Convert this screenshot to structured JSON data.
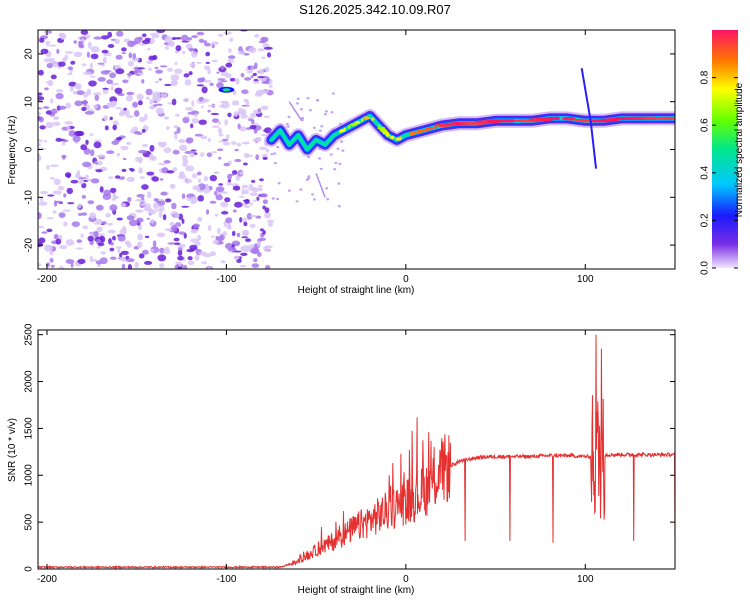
{
  "title": "S126.2025.342.10.09.R07",
  "colors": {
    "snr_line": "#e53030",
    "axis": "#000000",
    "scatter": "#7a2fe6"
  },
  "chart_data": [
    {
      "type": "heatmap",
      "title": "S126.2025.342.10.09.R07",
      "xlabel": "Height of straight line (km)",
      "ylabel": "Frequency (Hz)",
      "xlim": [
        -205,
        150
      ],
      "ylim": [
        -25,
        25
      ],
      "xticks": [
        -200,
        -100,
        0,
        100
      ],
      "yticks": [
        -20,
        -10,
        0,
        10,
        20
      ],
      "colorbar": {
        "label": "Normalized spectral amplitude",
        "range": [
          0.0,
          1.0
        ],
        "ticks": [
          0.0,
          0.2,
          0.4,
          0.6,
          0.8
        ],
        "tick_labels": [
          "0.0",
          "0.2",
          "0.4",
          "0.6",
          "0.8"
        ]
      },
      "noise_region_km": [
        -205,
        -75
      ],
      "ridge": {
        "x": [
          -75,
          -70,
          -65,
          -60,
          -55,
          -50,
          -45,
          -40,
          -35,
          -30,
          -25,
          -20,
          -15,
          -10,
          -5,
          0,
          10,
          20,
          30,
          40,
          50,
          60,
          70,
          80,
          90,
          100,
          105,
          110,
          120,
          130,
          140,
          150
        ],
        "y": [
          2,
          4,
          1,
          3,
          0,
          2,
          1,
          3,
          4,
          5,
          6,
          7,
          5,
          3,
          2,
          3,
          4,
          5,
          5.5,
          5.5,
          6,
          6,
          6,
          6.5,
          6.5,
          6,
          6,
          6,
          6.5,
          6.5,
          6.5,
          6.5
        ],
        "amplitude": [
          0.3,
          0.5,
          0.4,
          0.6,
          0.4,
          0.5,
          0.4,
          0.6,
          0.7,
          0.6,
          0.7,
          0.8,
          0.6,
          0.7,
          0.7,
          0.8,
          0.85,
          0.9,
          0.95,
          0.9,
          0.95,
          0.95,
          0.9,
          0.95,
          0.95,
          0.9,
          0.9,
          0.95,
          0.95,
          0.95,
          0.9,
          0.9
        ]
      }
    },
    {
      "type": "line",
      "xlabel": "Height of straight line (km)",
      "ylabel": "SNR (10 * v/v)",
      "xlim": [
        -205,
        150
      ],
      "ylim": [
        0,
        2550
      ],
      "xticks": [
        -200,
        -100,
        0,
        100
      ],
      "yticks": [
        0,
        500,
        1000,
        1500,
        2000,
        2500
      ],
      "series": [
        {
          "name": "SNR",
          "x": [
            -205,
            -70,
            -60,
            -50,
            -40,
            -30,
            -20,
            -10,
            0,
            10,
            20,
            30,
            40,
            50,
            60,
            70,
            80,
            90,
            100,
            105,
            110,
            120,
            130,
            140,
            150
          ],
          "y": [
            20,
            20,
            80,
            200,
            300,
            420,
            520,
            620,
            720,
            820,
            1050,
            1150,
            1190,
            1200,
            1200,
            1200,
            1210,
            1210,
            1200,
            1200,
            1220,
            1220,
            1220,
            1220,
            1220
          ]
        }
      ],
      "spikes_down": [
        {
          "x": 33,
          "y": 300
        },
        {
          "x": 58,
          "y": 300
        },
        {
          "x": 82,
          "y": 280
        },
        {
          "x": 127,
          "y": 300
        },
        {
          "x": 150,
          "y": 300
        }
      ],
      "spikes_up": [
        {
          "x": 106,
          "y": 2500
        },
        {
          "x": 109,
          "y": 2350
        }
      ]
    }
  ]
}
